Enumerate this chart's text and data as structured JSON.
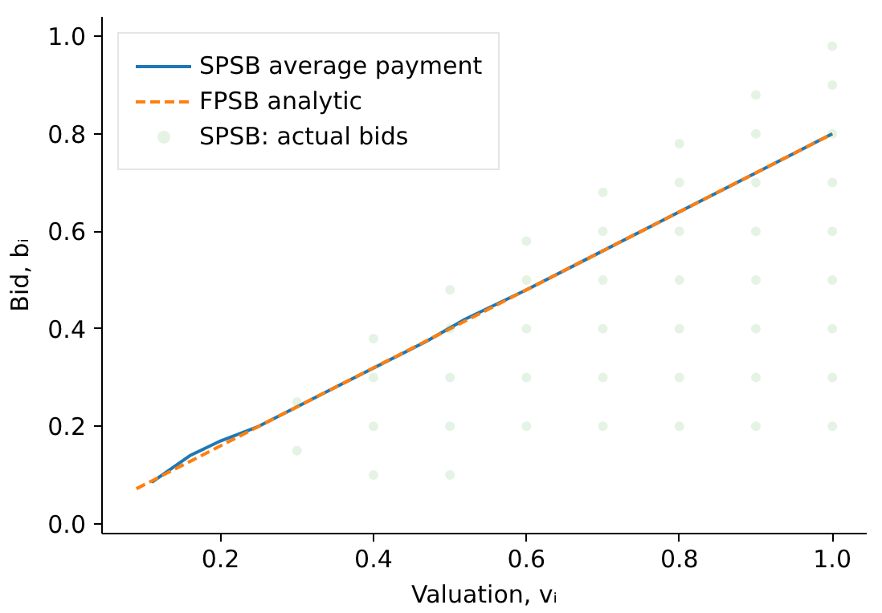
{
  "chart_data": {
    "type": "line",
    "xlabel": "Valuation, vᵢ",
    "ylabel": "Bid, bᵢ",
    "xlim": [
      0.045,
      1.045
    ],
    "ylim": [
      -0.02,
      1.04
    ],
    "xticks": [
      0.2,
      0.4,
      0.6,
      0.8,
      {
        "value": 1,
        "label": "1.0"
      }
    ],
    "yticks": [
      {
        "value": 0,
        "label": "0.0"
      },
      0.2,
      0.4,
      0.6,
      0.8,
      {
        "value": 1,
        "label": "1.0"
      }
    ],
    "grid": false,
    "legend": "top left",
    "series": [
      {
        "name": "SPSB average payment",
        "color": "#1f77b4",
        "line_style": "solid",
        "x": [
          0.11,
          0.16,
          0.2,
          0.25,
          0.35,
          0.47,
          0.52,
          0.6,
          0.7,
          0.8,
          0.9,
          1.0
        ],
        "values": [
          0.085,
          0.14,
          0.17,
          0.2,
          0.28,
          0.375,
          0.42,
          0.48,
          0.56,
          0.64,
          0.72,
          0.8
        ]
      },
      {
        "name": "FPSB analytic",
        "color": "#ff7f0e",
        "line_style": "dashed",
        "x": [
          0.09,
          1.0
        ],
        "values": [
          0.072,
          0.8
        ]
      },
      {
        "name": "SPSB: actual bids",
        "color": "#2ca02c",
        "type": "scatter",
        "marker": "circle",
        "x": [
          0.3,
          0.3,
          0.4,
          0.4,
          0.4,
          0.4,
          0.5,
          0.5,
          0.5,
          0.5,
          0.5,
          0.6,
          0.6,
          0.6,
          0.6,
          0.6,
          0.7,
          0.7,
          0.7,
          0.7,
          0.7,
          0.7,
          0.8,
          0.8,
          0.8,
          0.8,
          0.8,
          0.8,
          0.8,
          0.9,
          0.9,
          0.9,
          0.9,
          0.9,
          0.9,
          0.9,
          0.9,
          1.0,
          1.0,
          1.0,
          1.0,
          1.0,
          1.0,
          1.0,
          1.0,
          1.0
        ],
        "values": [
          0.25,
          0.15,
          0.38,
          0.3,
          0.2,
          0.1,
          0.48,
          0.4,
          0.3,
          0.2,
          0.1,
          0.58,
          0.5,
          0.4,
          0.3,
          0.2,
          0.68,
          0.6,
          0.5,
          0.4,
          0.3,
          0.2,
          0.78,
          0.7,
          0.6,
          0.5,
          0.4,
          0.3,
          0.2,
          0.88,
          0.8,
          0.7,
          0.6,
          0.5,
          0.4,
          0.3,
          0.2,
          0.98,
          0.9,
          0.8,
          0.7,
          0.6,
          0.5,
          0.4,
          0.3,
          0.2
        ]
      }
    ]
  }
}
